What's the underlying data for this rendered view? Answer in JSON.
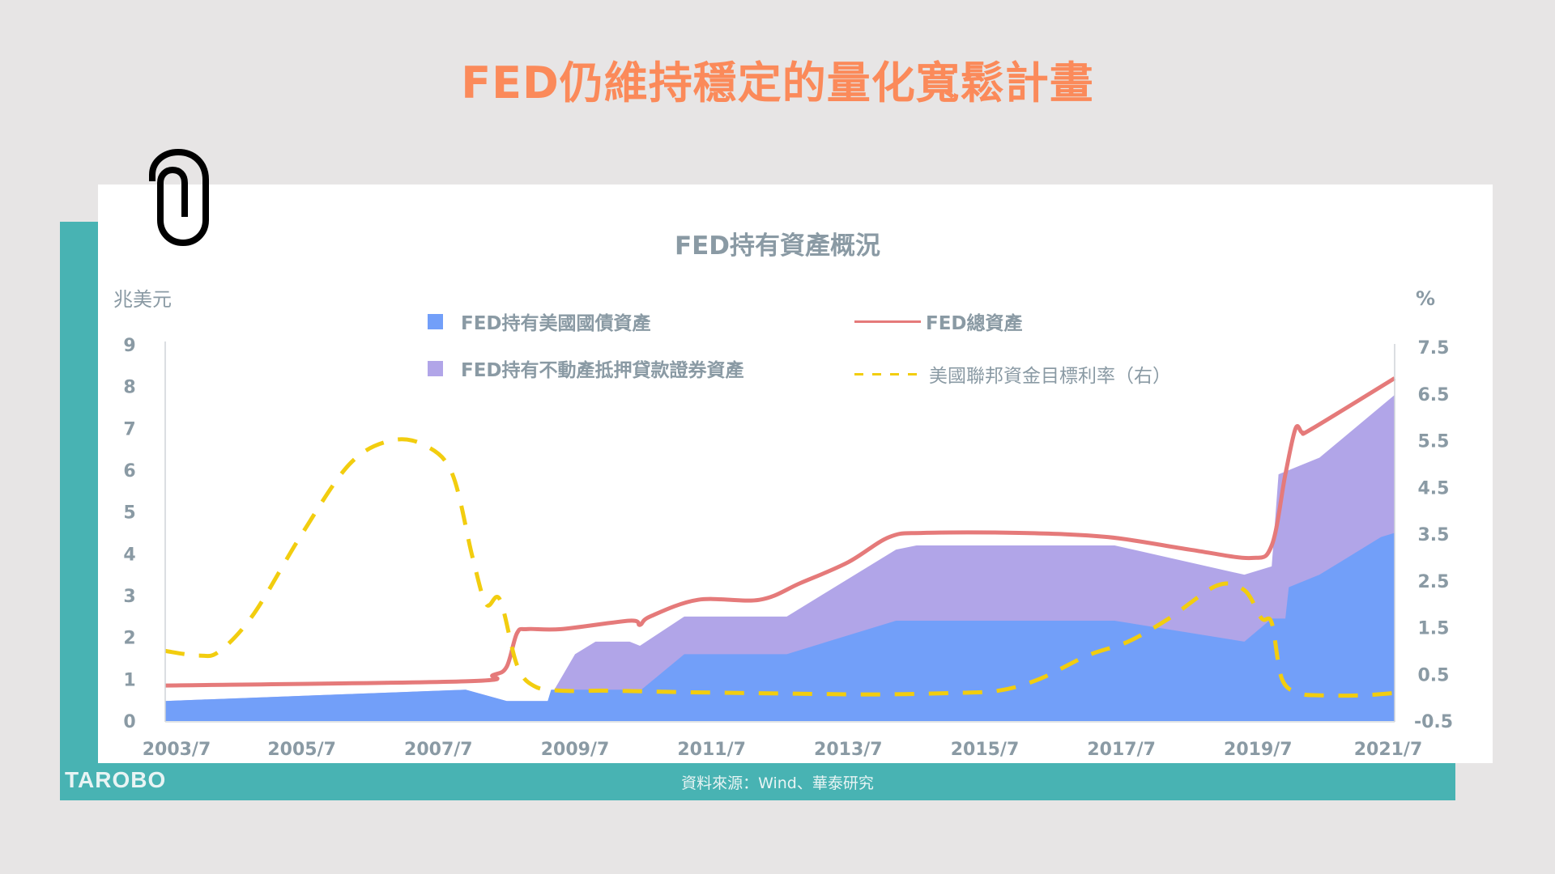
{
  "page": {
    "title": "FED仍維持穩定的量化寬鬆計畫",
    "source": "資料來源：Wind、華泰研究",
    "logo": "TAROBO"
  },
  "colors": {
    "title": "#fb8a5a",
    "teal": "#48b3b3",
    "treasury": "#729ff9",
    "mbs": "#b1a5e8",
    "total": "#e57a7a",
    "rate": "#f2cd0f",
    "text": "#8a9aa4"
  },
  "icons": {
    "paperclip": "paperclip-icon"
  },
  "chart_data": {
    "type": "area",
    "title": "FED持有資產概況",
    "xlabel": "",
    "ylabel": "兆美元",
    "ylabel_right": "%",
    "x_ticks": [
      "2003/7",
      "2005/7",
      "2007/7",
      "2009/7",
      "2011/7",
      "2013/7",
      "2015/7",
      "2017/7",
      "2019/7",
      "2021/7"
    ],
    "y_ticks": [
      0,
      1,
      2,
      3,
      4,
      5,
      6,
      7,
      8,
      9
    ],
    "y2_ticks": [
      -0.5,
      0.5,
      1.5,
      2.5,
      3.5,
      4.5,
      5.5,
      6.5,
      7.5
    ],
    "ylim": [
      0,
      9
    ],
    "y2lim": [
      -0.5,
      7.5
    ],
    "xlim": [
      2003.5,
      2021.5
    ],
    "grid": false,
    "legend": [
      {
        "label": "FED持有美國國債資產",
        "kind": "area",
        "color": "#729ff9"
      },
      {
        "label": "FED總資產",
        "kind": "line",
        "color": "#e57a7a"
      },
      {
        "label": "FED持有不動產抵押貸款證券資產",
        "kind": "area",
        "color": "#b1a5e8"
      },
      {
        "label": "美國聯邦資金目標利率（右）",
        "kind": "dashed",
        "color": "#f2cd0f"
      }
    ],
    "series": [
      {
        "name": "FED持有美國國債資產",
        "axis": "left",
        "type": "area",
        "x": [
          2003.5,
          2007.9,
          2008.5,
          2009.1,
          2009.15,
          2010.4,
          2010.45,
          2011.1,
          2012.6,
          2014.2,
          2017.4,
          2019.3,
          2019.7,
          2019.9,
          2019.95,
          2020.4,
          2021.3,
          2021.5
        ],
        "y": [
          0.48,
          0.75,
          0.48,
          0.48,
          0.75,
          0.75,
          0.72,
          1.6,
          1.6,
          2.4,
          2.4,
          1.9,
          2.45,
          2.45,
          3.2,
          3.5,
          4.4,
          4.5
        ]
      },
      {
        "name": "FED持有不動產抵押貸款證券資產(累積)",
        "axis": "left",
        "type": "area",
        "x": [
          2003.5,
          2007.9,
          2008.5,
          2009.1,
          2009.5,
          2009.8,
          2010.3,
          2010.45,
          2011.1,
          2012.6,
          2014.2,
          2014.5,
          2017.4,
          2019.3,
          2019.7,
          2019.8,
          2020.4,
          2021.5
        ],
        "y": [
          0.48,
          0.75,
          0.48,
          0.48,
          1.6,
          1.9,
          1.9,
          1.8,
          2.5,
          2.5,
          4.1,
          4.2,
          4.2,
          3.5,
          3.7,
          5.9,
          6.3,
          7.8
        ]
      },
      {
        "name": "FED總資產",
        "axis": "left",
        "type": "line",
        "x": [
          2003.5,
          2007.9,
          2008.3,
          2008.5,
          2008.65,
          2008.8,
          2009.3,
          2010.3,
          2010.45,
          2010.6,
          2011.3,
          2012.2,
          2012.8,
          2013.5,
          2014.1,
          2014.6,
          2016,
          2017.3,
          2018.5,
          2019.4,
          2019.7,
          2019.9,
          2020.05,
          2020.15,
          2020.3,
          2021.5
        ],
        "y": [
          0.85,
          0.95,
          1.1,
          1.3,
          2.1,
          2.2,
          2.2,
          2.4,
          2.3,
          2.5,
          2.9,
          2.9,
          3.3,
          3.8,
          4.4,
          4.5,
          4.5,
          4.4,
          4.1,
          3.9,
          4.2,
          5.9,
          7.0,
          6.9,
          7.0,
          8.2
        ]
      },
      {
        "name": "美國聯邦資金目標利率（右）",
        "axis": "right",
        "type": "line",
        "style": "dashed",
        "x": [
          2003.5,
          2004.0,
          2004.3,
          2004.8,
          2005.5,
          2006.2,
          2006.8,
          2007.3,
          2007.7,
          2008.0,
          2008.2,
          2008.4,
          2008.65,
          2008.9,
          2009.3,
          2010,
          2011,
          2012,
          2013,
          2014,
          2015,
          2015.7,
          2016.3,
          2017,
          2017.6,
          2018.2,
          2018.9,
          2019.3,
          2019.55,
          2019.7,
          2019.85,
          2020.1,
          2020.4,
          2021,
          2021.5
        ],
        "y": [
          1.0,
          0.9,
          1.0,
          1.8,
          3.5,
          5.0,
          5.5,
          5.4,
          4.8,
          3.0,
          2.0,
          2.1,
          0.7,
          0.25,
          0.15,
          0.15,
          0.12,
          0.1,
          0.08,
          0.07,
          0.1,
          0.15,
          0.4,
          0.9,
          1.2,
          1.7,
          2.4,
          2.3,
          1.7,
          1.6,
          0.4,
          0.1,
          0.05,
          0.05,
          0.1
        ]
      }
    ]
  }
}
